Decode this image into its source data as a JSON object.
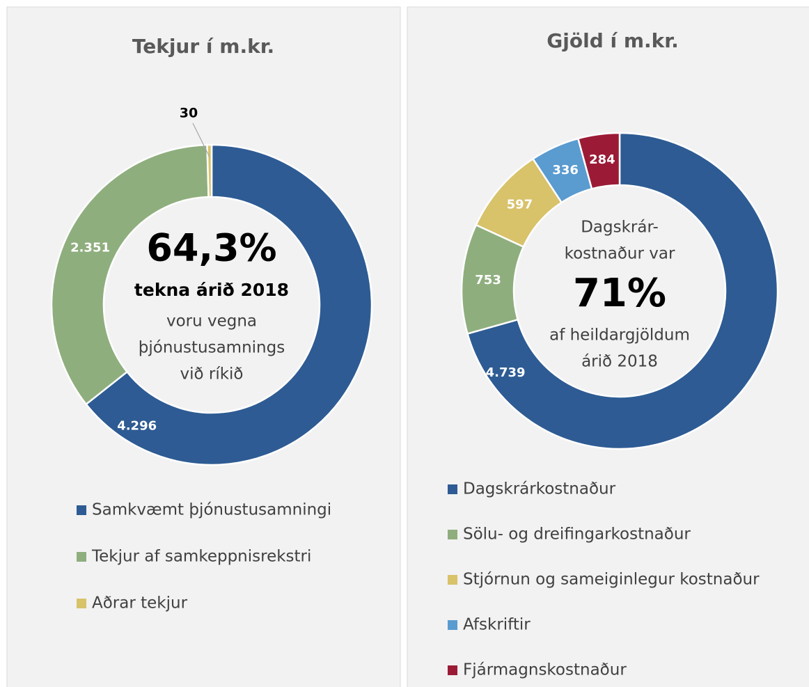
{
  "chart_data": [
    {
      "type": "pie",
      "title": "Tekjur í m.kr.",
      "categories": [
        "Samkvæmt þjónustusamningi",
        "Tekjur af samkeppnisrekstri",
        "Aðrar tekjur"
      ],
      "values": [
        4296,
        2351,
        30
      ],
      "value_labels": [
        "4.296",
        "2.351",
        "30"
      ],
      "colors": [
        "#2e5b93",
        "#8fae7e",
        "#d8c26a"
      ],
      "annotations": [
        "64,3%",
        "tekna árið 2018",
        "voru vegna",
        "þjónustusamnings",
        "við ríkið"
      ],
      "legend": "bottom"
    },
    {
      "type": "pie",
      "title": "Gjöld í m.kr.",
      "categories": [
        "Dagskrárkostnaður",
        "Sölu- og dreifingarkostnaður",
        "Stjórnun og sameiginlegur kostnaður",
        "Afskriftir",
        "Fjármagnskostnaður"
      ],
      "values": [
        4739,
        753,
        597,
        336,
        284
      ],
      "value_labels": [
        "4.739",
        "753",
        "597",
        "336",
        "284"
      ],
      "colors": [
        "#2e5b93",
        "#8fae7e",
        "#d8c26a",
        "#5a9bd0",
        "#9b1b36"
      ],
      "annotations": [
        "Dagskrár-",
        "kostnaður var",
        "71%",
        "af heildargjöldum",
        "árið 2018"
      ],
      "legend": "bottom"
    }
  ]
}
